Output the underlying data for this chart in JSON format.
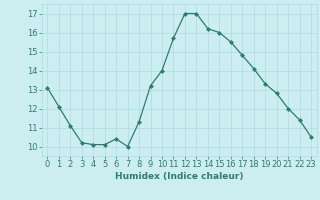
{
  "x": [
    0,
    1,
    2,
    3,
    4,
    5,
    6,
    7,
    8,
    9,
    10,
    11,
    12,
    13,
    14,
    15,
    16,
    17,
    18,
    19,
    20,
    21,
    22,
    23
  ],
  "y": [
    13.1,
    12.1,
    11.1,
    10.2,
    10.1,
    10.1,
    10.4,
    10.0,
    11.3,
    13.2,
    14.0,
    15.7,
    17.0,
    17.0,
    16.2,
    16.0,
    15.5,
    14.8,
    14.1,
    13.3,
    12.8,
    12.0,
    11.4,
    10.5
  ],
  "line_color": "#2e7d6e",
  "marker": "D",
  "marker_size": 2,
  "bg_color": "#cceef0",
  "grid_color": "#aadcde",
  "xlabel": "Humidex (Indice chaleur)",
  "xlim": [
    -0.5,
    23.5
  ],
  "ylim": [
    9.5,
    17.5
  ],
  "yticks": [
    10,
    11,
    12,
    13,
    14,
    15,
    16,
    17
  ],
  "xticks": [
    0,
    1,
    2,
    3,
    4,
    5,
    6,
    7,
    8,
    9,
    10,
    11,
    12,
    13,
    14,
    15,
    16,
    17,
    18,
    19,
    20,
    21,
    22,
    23
  ],
  "label_fontsize": 6.5,
  "tick_fontsize": 6
}
